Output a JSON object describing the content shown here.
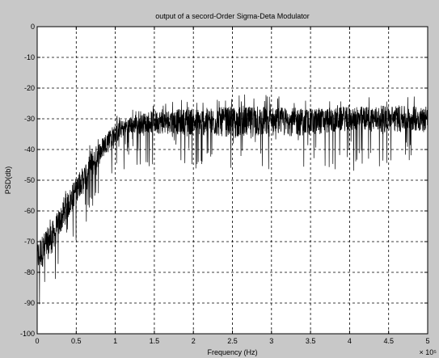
{
  "chart_data": {
    "type": "line",
    "title": "output of a secord-Order Sigma-Deta Modulator",
    "xlabel": "Frequency (Hz)",
    "ylabel": "PSD(db)",
    "x_multiplier": "× 10⁵",
    "xlim": [
      0,
      5
    ],
    "ylim": [
      -100,
      0
    ],
    "xticks": [
      0,
      0.5,
      1,
      1.5,
      2,
      2.5,
      3,
      3.5,
      4,
      4.5,
      5
    ],
    "xtick_labels": [
      "0",
      "0.5",
      "1",
      "1.5",
      "2",
      "2.5",
      "3",
      "3.5",
      "4",
      "4.5",
      "5"
    ],
    "yticks": [
      0,
      -10,
      -20,
      -30,
      -40,
      -50,
      -60,
      -70,
      -80,
      -90,
      -100
    ],
    "ytick_labels": [
      "0",
      "-10",
      "-20",
      "-30",
      "-40",
      "-50",
      "-60",
      "-70",
      "-80",
      "-90",
      "-100"
    ],
    "grid": true,
    "colors": {
      "background": "#c8c8c8",
      "plot_area": "#ffffff",
      "line": "#000000",
      "grid": "#000000"
    },
    "series": [
      {
        "envelope": {
          "x": [
            0,
            0.1,
            0.2,
            0.3,
            0.4,
            0.5,
            0.6,
            0.7,
            0.8,
            0.9,
            1.0,
            1.1,
            1.2,
            1.3,
            1.4,
            1.5,
            2.0,
            2.5,
            3.0,
            3.5,
            4.0,
            4.5,
            5.0
          ],
          "upper": [
            -66,
            -62,
            -59,
            -55,
            -50,
            -45,
            -42,
            -37,
            -34,
            -31,
            -29,
            -28,
            -27,
            -26,
            -25,
            -24,
            -23,
            -22,
            -22,
            -23,
            -23,
            -22,
            -23
          ],
          "center": [
            -75,
            -72,
            -68,
            -63,
            -58,
            -53,
            -49,
            -45,
            -41,
            -37,
            -35,
            -33,
            -32,
            -32,
            -31,
            -31,
            -31,
            -31,
            -31,
            -31,
            -30,
            -30,
            -30
          ],
          "lower": [
            -94,
            -90,
            -85,
            -80,
            -75,
            -70,
            -65,
            -60,
            -56,
            -52,
            -50,
            -49,
            -48,
            -48,
            -48,
            -47,
            -47,
            -47,
            -47,
            -47,
            -47,
            -47,
            -46
          ]
        }
      }
    ]
  }
}
